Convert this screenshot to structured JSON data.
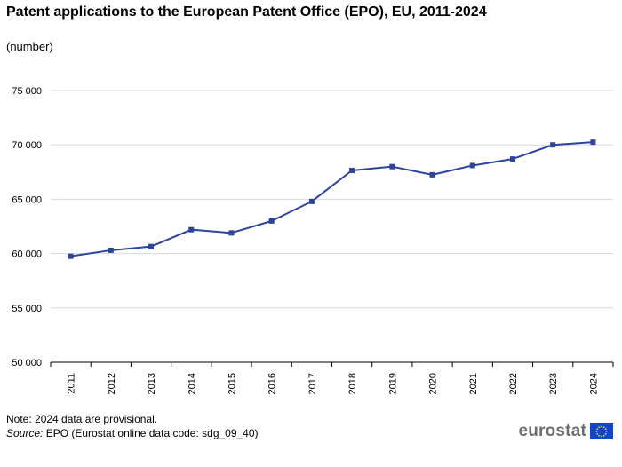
{
  "title": "Patent applications to the European Patent Office (EPO), EU, 2011-2024",
  "subtitle": "(number)",
  "note": "Note: 2024 data are provisional.",
  "source_label": "Source:",
  "source_text": "EPO (Eurostat online data code: sdg_09_40)",
  "logo_text": "eurostat",
  "colors": {
    "line": "#2a44a0",
    "grid": "#d9d9d9",
    "axis": "#000000",
    "flag": "#0e47cb",
    "stars": "#ffdd00"
  },
  "chart_data": {
    "type": "line",
    "title": "Patent applications to the European Patent Office (EPO), EU, 2011-2024",
    "xlabel": "",
    "ylabel": "(number)",
    "categories": [
      "2011",
      "2012",
      "2013",
      "2014",
      "2015",
      "2016",
      "2017",
      "2018",
      "2019",
      "2020",
      "2021",
      "2022",
      "2023",
      "2024"
    ],
    "series": [
      {
        "name": "EU",
        "values": [
          59750,
          60300,
          60650,
          62200,
          61900,
          63000,
          64800,
          67650,
          68000,
          67250,
          68100,
          68700,
          70000,
          70250
        ]
      }
    ],
    "ylim": [
      50000,
      75000
    ],
    "yticks": [
      50000,
      55000,
      60000,
      65000,
      70000,
      75000
    ],
    "ytick_labels": [
      "50 000",
      "55 000",
      "60 000",
      "65 000",
      "70 000",
      "75 000"
    ],
    "grid": true
  }
}
